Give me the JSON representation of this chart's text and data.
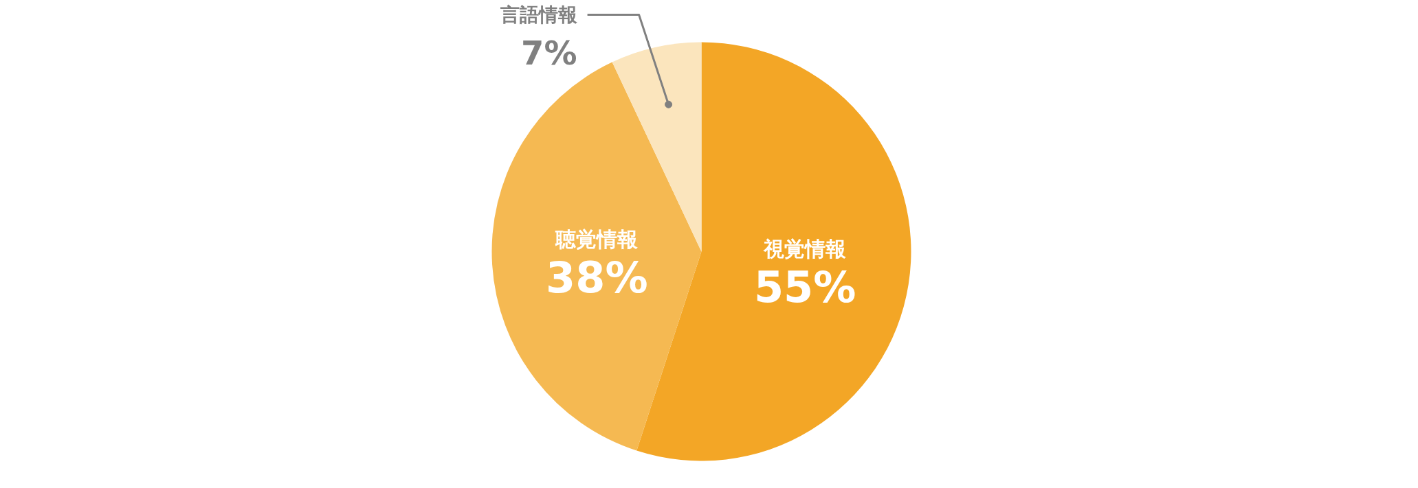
{
  "chart_data": {
    "type": "pie",
    "categories": [
      "視覚情報",
      "聴覚情報",
      "言語情報"
    ],
    "values": [
      55,
      38,
      7
    ],
    "colors": [
      "#f3a626",
      "#f5b952",
      "#fbe5bd"
    ],
    "value_labels": [
      "55%",
      "38%",
      "7%"
    ]
  }
}
